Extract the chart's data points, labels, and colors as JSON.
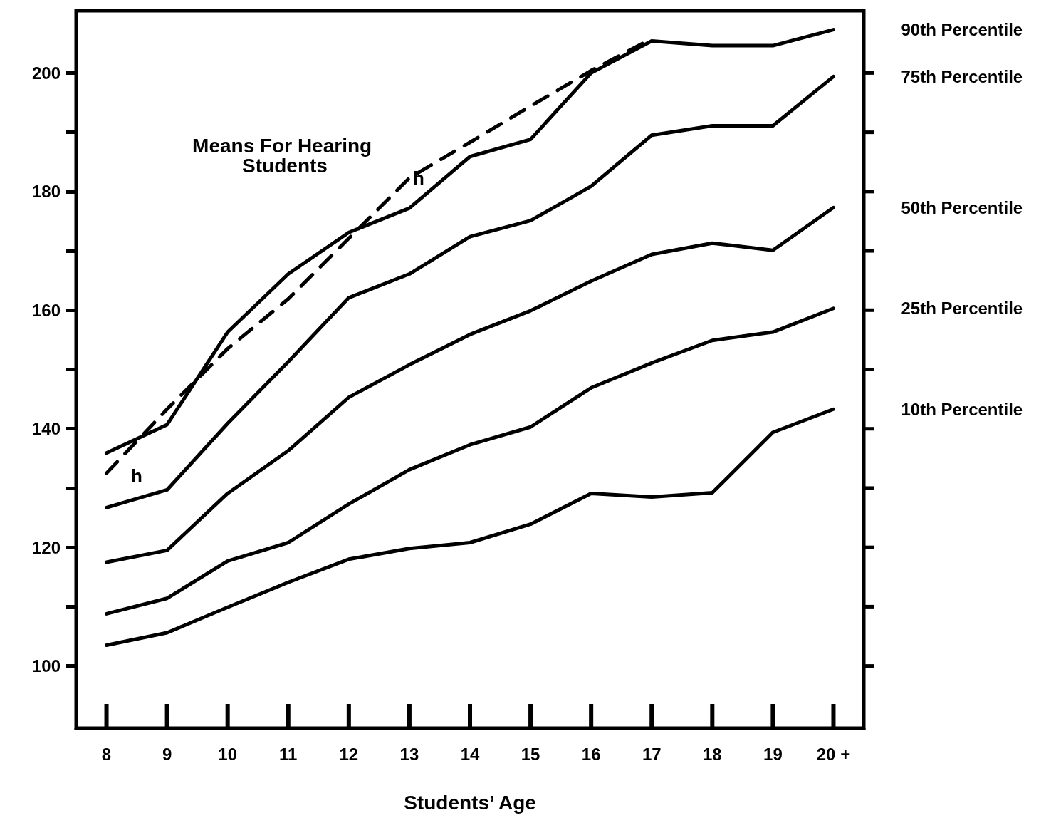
{
  "chart_data": {
    "type": "line",
    "xlabel": "Students’ Age",
    "categories": [
      "8",
      "9",
      "10",
      "11",
      "12",
      "13",
      "14",
      "15",
      "16",
      "17",
      "18",
      "19",
      "20 +"
    ],
    "ylim": [
      89.5,
      210.5
    ],
    "yticks": [
      100,
      {
        "value": 110,
        "label": null
      },
      120,
      {
        "value": 130,
        "label": null
      },
      140,
      {
        "value": 150,
        "label": null
      },
      160,
      {
        "value": 170,
        "label": null
      },
      180,
      {
        "value": 190,
        "label": null
      },
      200
    ],
    "series": [
      {
        "name": "90th Percentile",
        "color": "#000000",
        "values": [
          135.9,
          140.7,
          156.3,
          166.1,
          173.1,
          177.2,
          185.9,
          188.8,
          200,
          205.4,
          204.6,
          204.6,
          207.3
        ]
      },
      {
        "name": "75th Percentile",
        "color": "#000000",
        "values": [
          126.7,
          129.7,
          140.9,
          151.3,
          162.1,
          166.1,
          172.4,
          175.1,
          180.9,
          189.5,
          191.1,
          191.1,
          199.4
        ]
      },
      {
        "name": "50th Percentile",
        "color": "#000000",
        "values": [
          117.5,
          119.5,
          129.1,
          136.3,
          145.3,
          150.8,
          155.9,
          159.9,
          164.9,
          169.4,
          171.3,
          170.1,
          177.3
        ]
      },
      {
        "name": "25th Percentile",
        "color": "#000000",
        "values": [
          108.8,
          111.4,
          117.7,
          120.8,
          127.3,
          133.1,
          137.3,
          140.3,
          146.9,
          151.1,
          154.9,
          156.3,
          160.3
        ]
      },
      {
        "name": "10th Percentile",
        "color": "#000000",
        "values": [
          103.5,
          105.6,
          109.9,
          114.1,
          118,
          119.8,
          120.8,
          123.9,
          129.1,
          128.5,
          129.2,
          139.4,
          143.3
        ]
      },
      {
        "color": "#000000",
        "line_style": "dashed",
        "values": [
          132.5,
          143.3,
          153.5,
          161.9,
          172.1,
          182.3,
          188.3,
          194.4,
          200.4,
          205.8,
          null,
          null,
          null
        ]
      }
    ],
    "annotations": [
      "Means For Hearing Students",
      "h",
      "h"
    ],
    "legend": "right",
    "grid": false,
    "marker": "none",
    "line_style": "solid"
  }
}
